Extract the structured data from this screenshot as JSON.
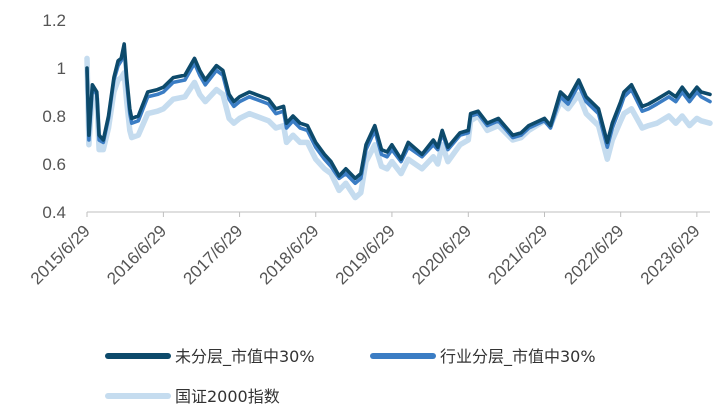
{
  "chart_data": {
    "type": "line",
    "title": "",
    "xlabel": "",
    "ylabel": "",
    "ylim": [
      0.4,
      1.2
    ],
    "y_ticks": [
      "0.4",
      "0.6",
      "0.8",
      "1",
      "1.2"
    ],
    "x_ticks": [
      "2015/6/29",
      "2016/6/29",
      "2017/6/29",
      "2018/6/29",
      "2019/6/29",
      "2020/6/29",
      "2021/6/29",
      "2022/6/29",
      "2023/6/29"
    ],
    "x_range": [
      "2015-06-29",
      "2023-08-31"
    ],
    "grid": false,
    "legend_position": "bottom",
    "series": [
      {
        "name": "未分层_市值中30%",
        "color": "#0d4a6b",
        "points": [
          [
            "2015-06-29",
            1.0
          ],
          [
            "2015-07-08",
            0.72
          ],
          [
            "2015-07-25",
            0.93
          ],
          [
            "2015-08-15",
            0.9
          ],
          [
            "2015-08-26",
            0.72
          ],
          [
            "2015-09-15",
            0.7
          ],
          [
            "2015-10-10",
            0.8
          ],
          [
            "2015-11-05",
            0.96
          ],
          [
            "2015-11-25",
            1.03
          ],
          [
            "2015-12-10",
            1.04
          ],
          [
            "2015-12-24",
            1.1
          ],
          [
            "2016-01-05",
            0.96
          ],
          [
            "2016-01-20",
            0.83
          ],
          [
            "2016-01-29",
            0.79
          ],
          [
            "2016-03-01",
            0.8
          ],
          [
            "2016-04-15",
            0.9
          ],
          [
            "2016-06-01",
            0.91
          ],
          [
            "2016-06-29",
            0.92
          ],
          [
            "2016-08-15",
            0.96
          ],
          [
            "2016-10-10",
            0.97
          ],
          [
            "2016-11-25",
            1.04
          ],
          [
            "2016-12-20",
            0.99
          ],
          [
            "2017-01-16",
            0.95
          ],
          [
            "2017-03-10",
            1.01
          ],
          [
            "2017-04-10",
            0.99
          ],
          [
            "2017-05-10",
            0.89
          ],
          [
            "2017-06-02",
            0.86
          ],
          [
            "2017-06-29",
            0.88
          ],
          [
            "2017-08-15",
            0.9
          ],
          [
            "2017-09-15",
            0.89
          ],
          [
            "2017-11-15",
            0.87
          ],
          [
            "2017-12-20",
            0.83
          ],
          [
            "2018-01-26",
            0.84
          ],
          [
            "2018-02-09",
            0.77
          ],
          [
            "2018-03-12",
            0.8
          ],
          [
            "2018-04-15",
            0.77
          ],
          [
            "2018-05-20",
            0.76
          ],
          [
            "2018-06-29",
            0.69
          ],
          [
            "2018-08-10",
            0.64
          ],
          [
            "2018-09-10",
            0.61
          ],
          [
            "2018-10-19",
            0.55
          ],
          [
            "2018-11-20",
            0.58
          ],
          [
            "2019-01-04",
            0.54
          ],
          [
            "2019-01-31",
            0.56
          ],
          [
            "2019-02-25",
            0.68
          ],
          [
            "2019-04-08",
            0.76
          ],
          [
            "2019-05-10",
            0.66
          ],
          [
            "2019-06-06",
            0.65
          ],
          [
            "2019-06-29",
            0.68
          ],
          [
            "2019-08-12",
            0.62
          ],
          [
            "2019-09-15",
            0.69
          ],
          [
            "2019-11-20",
            0.64
          ],
          [
            "2020-01-13",
            0.7
          ],
          [
            "2020-02-04",
            0.67
          ],
          [
            "2020-02-25",
            0.74
          ],
          [
            "2020-03-23",
            0.67
          ],
          [
            "2020-05-20",
            0.73
          ],
          [
            "2020-06-29",
            0.74
          ],
          [
            "2020-07-10",
            0.81
          ],
          [
            "2020-08-15",
            0.82
          ],
          [
            "2020-09-28",
            0.77
          ],
          [
            "2020-11-20",
            0.79
          ],
          [
            "2021-01-28",
            0.72
          ],
          [
            "2021-03-09",
            0.73
          ],
          [
            "2021-04-15",
            0.76
          ],
          [
            "2021-06-29",
            0.79
          ],
          [
            "2021-07-28",
            0.76
          ],
          [
            "2021-09-13",
            0.9
          ],
          [
            "2021-10-20",
            0.87
          ],
          [
            "2021-12-10",
            0.95
          ],
          [
            "2022-01-15",
            0.88
          ],
          [
            "2022-03-15",
            0.83
          ],
          [
            "2022-04-26",
            0.69
          ],
          [
            "2022-05-20",
            0.77
          ],
          [
            "2022-06-29",
            0.86
          ],
          [
            "2022-07-15",
            0.9
          ],
          [
            "2022-08-20",
            0.93
          ],
          [
            "2022-10-10",
            0.84
          ],
          [
            "2022-11-10",
            0.85
          ],
          [
            "2022-12-20",
            0.87
          ],
          [
            "2023-02-15",
            0.9
          ],
          [
            "2023-03-20",
            0.88
          ],
          [
            "2023-04-20",
            0.92
          ],
          [
            "2023-05-25",
            0.88
          ],
          [
            "2023-06-29",
            0.92
          ],
          [
            "2023-07-20",
            0.9
          ],
          [
            "2023-08-31",
            0.89
          ]
        ]
      },
      {
        "name": "行业分层_市值中30%",
        "color": "#3b7dc4",
        "points": [
          [
            "2015-06-29",
            0.99
          ],
          [
            "2015-07-08",
            0.7
          ],
          [
            "2015-07-25",
            0.92
          ],
          [
            "2015-08-15",
            0.89
          ],
          [
            "2015-08-26",
            0.7
          ],
          [
            "2015-09-15",
            0.69
          ],
          [
            "2015-10-10",
            0.79
          ],
          [
            "2015-11-05",
            0.95
          ],
          [
            "2015-11-25",
            1.01
          ],
          [
            "2015-12-10",
            1.03
          ],
          [
            "2015-12-24",
            1.08
          ],
          [
            "2016-01-05",
            0.94
          ],
          [
            "2016-01-20",
            0.81
          ],
          [
            "2016-01-29",
            0.77
          ],
          [
            "2016-03-01",
            0.78
          ],
          [
            "2016-04-15",
            0.88
          ],
          [
            "2016-06-01",
            0.89
          ],
          [
            "2016-06-29",
            0.9
          ],
          [
            "2016-08-15",
            0.94
          ],
          [
            "2016-10-10",
            0.95
          ],
          [
            "2016-11-25",
            1.02
          ],
          [
            "2016-12-20",
            0.97
          ],
          [
            "2017-01-16",
            0.93
          ],
          [
            "2017-03-10",
            0.99
          ],
          [
            "2017-04-10",
            0.97
          ],
          [
            "2017-05-10",
            0.87
          ],
          [
            "2017-06-02",
            0.84
          ],
          [
            "2017-06-29",
            0.86
          ],
          [
            "2017-08-15",
            0.88
          ],
          [
            "2017-09-15",
            0.87
          ],
          [
            "2017-11-15",
            0.85
          ],
          [
            "2017-12-20",
            0.81
          ],
          [
            "2018-01-26",
            0.82
          ],
          [
            "2018-02-09",
            0.75
          ],
          [
            "2018-03-12",
            0.78
          ],
          [
            "2018-04-15",
            0.75
          ],
          [
            "2018-05-20",
            0.74
          ],
          [
            "2018-06-29",
            0.67
          ],
          [
            "2018-08-10",
            0.62
          ],
          [
            "2018-09-10",
            0.59
          ],
          [
            "2018-10-19",
            0.54
          ],
          [
            "2018-11-20",
            0.56
          ],
          [
            "2019-01-04",
            0.52
          ],
          [
            "2019-01-31",
            0.54
          ],
          [
            "2019-02-25",
            0.66
          ],
          [
            "2019-04-08",
            0.74
          ],
          [
            "2019-05-10",
            0.64
          ],
          [
            "2019-06-06",
            0.63
          ],
          [
            "2019-06-29",
            0.66
          ],
          [
            "2019-08-12",
            0.61
          ],
          [
            "2019-09-15",
            0.67
          ],
          [
            "2019-11-20",
            0.63
          ],
          [
            "2020-01-13",
            0.68
          ],
          [
            "2020-02-04",
            0.66
          ],
          [
            "2020-02-25",
            0.73
          ],
          [
            "2020-03-23",
            0.66
          ],
          [
            "2020-05-20",
            0.72
          ],
          [
            "2020-06-29",
            0.73
          ],
          [
            "2020-07-10",
            0.8
          ],
          [
            "2020-08-15",
            0.81
          ],
          [
            "2020-09-28",
            0.76
          ],
          [
            "2020-11-20",
            0.78
          ],
          [
            "2021-01-28",
            0.71
          ],
          [
            "2021-03-09",
            0.72
          ],
          [
            "2021-04-15",
            0.75
          ],
          [
            "2021-06-29",
            0.78
          ],
          [
            "2021-07-28",
            0.75
          ],
          [
            "2021-09-13",
            0.88
          ],
          [
            "2021-10-20",
            0.85
          ],
          [
            "2021-12-10",
            0.93
          ],
          [
            "2022-01-15",
            0.86
          ],
          [
            "2022-03-15",
            0.81
          ],
          [
            "2022-04-26",
            0.67
          ],
          [
            "2022-05-20",
            0.75
          ],
          [
            "2022-06-29",
            0.84
          ],
          [
            "2022-07-15",
            0.88
          ],
          [
            "2022-08-20",
            0.91
          ],
          [
            "2022-10-10",
            0.82
          ],
          [
            "2022-11-10",
            0.83
          ],
          [
            "2022-12-20",
            0.85
          ],
          [
            "2023-02-15",
            0.88
          ],
          [
            "2023-03-20",
            0.86
          ],
          [
            "2023-04-20",
            0.9
          ],
          [
            "2023-05-25",
            0.86
          ],
          [
            "2023-06-29",
            0.9
          ],
          [
            "2023-07-20",
            0.88
          ],
          [
            "2023-08-31",
            0.86
          ]
        ]
      },
      {
        "name": "国证2000指数",
        "color": "#c5dcef",
        "points": [
          [
            "2015-06-29",
            1.04
          ],
          [
            "2015-07-08",
            0.68
          ],
          [
            "2015-07-25",
            0.9
          ],
          [
            "2015-08-15",
            0.87
          ],
          [
            "2015-08-26",
            0.66
          ],
          [
            "2015-09-15",
            0.66
          ],
          [
            "2015-10-10",
            0.75
          ],
          [
            "2015-11-05",
            0.9
          ],
          [
            "2015-11-25",
            0.95
          ],
          [
            "2015-12-10",
            0.96
          ],
          [
            "2015-12-24",
            0.98
          ],
          [
            "2016-01-05",
            0.86
          ],
          [
            "2016-01-20",
            0.74
          ],
          [
            "2016-01-29",
            0.71
          ],
          [
            "2016-03-01",
            0.72
          ],
          [
            "2016-04-15",
            0.81
          ],
          [
            "2016-06-01",
            0.82
          ],
          [
            "2016-06-29",
            0.83
          ],
          [
            "2016-08-15",
            0.87
          ],
          [
            "2016-10-10",
            0.88
          ],
          [
            "2016-11-25",
            0.94
          ],
          [
            "2016-12-20",
            0.89
          ],
          [
            "2017-01-16",
            0.86
          ],
          [
            "2017-03-10",
            0.91
          ],
          [
            "2017-04-10",
            0.89
          ],
          [
            "2017-05-10",
            0.79
          ],
          [
            "2017-06-02",
            0.77
          ],
          [
            "2017-06-29",
            0.79
          ],
          [
            "2017-08-15",
            0.81
          ],
          [
            "2017-09-15",
            0.8
          ],
          [
            "2017-11-15",
            0.78
          ],
          [
            "2017-12-20",
            0.75
          ],
          [
            "2018-01-26",
            0.76
          ],
          [
            "2018-02-09",
            0.69
          ],
          [
            "2018-03-12",
            0.72
          ],
          [
            "2018-04-15",
            0.69
          ],
          [
            "2018-05-20",
            0.69
          ],
          [
            "2018-06-29",
            0.62
          ],
          [
            "2018-08-10",
            0.58
          ],
          [
            "2018-09-10",
            0.56
          ],
          [
            "2018-10-19",
            0.49
          ],
          [
            "2018-11-20",
            0.52
          ],
          [
            "2019-01-04",
            0.46
          ],
          [
            "2019-01-31",
            0.48
          ],
          [
            "2019-02-25",
            0.61
          ],
          [
            "2019-04-08",
            0.68
          ],
          [
            "2019-05-10",
            0.59
          ],
          [
            "2019-06-06",
            0.58
          ],
          [
            "2019-06-29",
            0.61
          ],
          [
            "2019-08-12",
            0.56
          ],
          [
            "2019-09-15",
            0.62
          ],
          [
            "2019-11-20",
            0.58
          ],
          [
            "2020-01-13",
            0.63
          ],
          [
            "2020-02-04",
            0.6
          ],
          [
            "2020-02-25",
            0.68
          ],
          [
            "2020-03-23",
            0.61
          ],
          [
            "2020-05-20",
            0.68
          ],
          [
            "2020-06-29",
            0.7
          ],
          [
            "2020-07-10",
            0.78
          ],
          [
            "2020-08-15",
            0.8
          ],
          [
            "2020-09-28",
            0.74
          ],
          [
            "2020-11-20",
            0.76
          ],
          [
            "2021-01-28",
            0.7
          ],
          [
            "2021-03-09",
            0.71
          ],
          [
            "2021-04-15",
            0.74
          ],
          [
            "2021-06-29",
            0.78
          ],
          [
            "2021-07-28",
            0.76
          ],
          [
            "2021-09-13",
            0.86
          ],
          [
            "2021-10-20",
            0.83
          ],
          [
            "2021-12-10",
            0.89
          ],
          [
            "2022-01-15",
            0.81
          ],
          [
            "2022-03-15",
            0.76
          ],
          [
            "2022-04-26",
            0.62
          ],
          [
            "2022-05-20",
            0.7
          ],
          [
            "2022-06-29",
            0.78
          ],
          [
            "2022-07-15",
            0.81
          ],
          [
            "2022-08-20",
            0.83
          ],
          [
            "2022-10-10",
            0.75
          ],
          [
            "2022-11-10",
            0.76
          ],
          [
            "2022-12-20",
            0.77
          ],
          [
            "2023-02-15",
            0.8
          ],
          [
            "2023-03-20",
            0.77
          ],
          [
            "2023-04-20",
            0.8
          ],
          [
            "2023-05-25",
            0.76
          ],
          [
            "2023-06-29",
            0.79
          ],
          [
            "2023-07-20",
            0.78
          ],
          [
            "2023-08-31",
            0.77
          ]
        ]
      }
    ]
  }
}
